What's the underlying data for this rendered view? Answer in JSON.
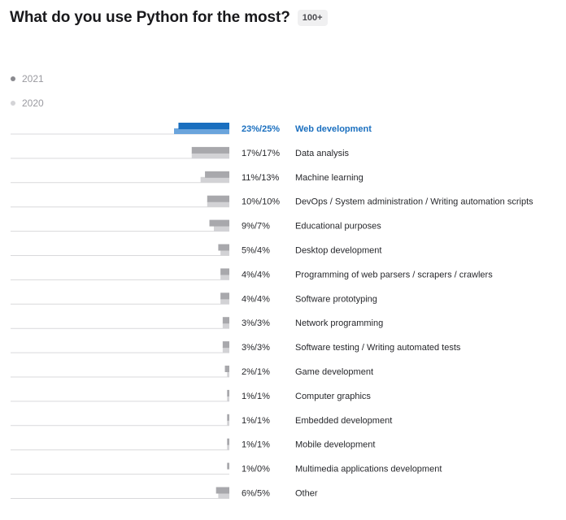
{
  "header": {
    "title": "What do you use Python for the most?",
    "badge": "100+"
  },
  "legend": [
    {
      "label": "2021",
      "color": "#8a8a8f"
    },
    {
      "label": "2020",
      "color": "#d4d4d7"
    }
  ],
  "colors": {
    "bar_2021": "#a8a8ac",
    "bar_2020": "#d2d2d5",
    "highlight_2021": "#1a6fbf",
    "highlight_2020": "#6aa4dc",
    "highlight_text": "#1a6fbf"
  },
  "chart_data": {
    "type": "bar",
    "orientation": "horizontal",
    "xlim": [
      0,
      25
    ],
    "series": [
      {
        "name": "2021",
        "values": [
          23,
          17,
          11,
          10,
          9,
          5,
          4,
          4,
          3,
          3,
          2,
          1,
          1,
          1,
          1,
          6
        ]
      },
      {
        "name": "2020",
        "values": [
          25,
          17,
          13,
          10,
          7,
          4,
          4,
          4,
          3,
          3,
          1,
          1,
          1,
          1,
          0,
          5
        ]
      }
    ],
    "rows": [
      {
        "pct": "23%/25%",
        "label": "Web development",
        "highlight": true
      },
      {
        "pct": "17%/17%",
        "label": "Data analysis"
      },
      {
        "pct": "11%/13%",
        "label": "Machine learning"
      },
      {
        "pct": "10%/10%",
        "label": "DevOps / System administration / Writing automation scripts"
      },
      {
        "pct": "9%/7%",
        "label": "Educational purposes"
      },
      {
        "pct": "5%/4%",
        "label": "Desktop development"
      },
      {
        "pct": "4%/4%",
        "label": "Programming of web parsers / scrapers / crawlers"
      },
      {
        "pct": "4%/4%",
        "label": "Software prototyping"
      },
      {
        "pct": "3%/3%",
        "label": "Network programming"
      },
      {
        "pct": "3%/3%",
        "label": "Software testing / Writing automated tests"
      },
      {
        "pct": "2%/1%",
        "label": "Game development"
      },
      {
        "pct": "1%/1%",
        "label": "Computer graphics"
      },
      {
        "pct": "1%/1%",
        "label": "Embedded development"
      },
      {
        "pct": "1%/1%",
        "label": "Mobile development"
      },
      {
        "pct": "1%/0%",
        "label": "Multimedia applications development"
      },
      {
        "pct": "6%/5%",
        "label": "Other"
      }
    ]
  }
}
